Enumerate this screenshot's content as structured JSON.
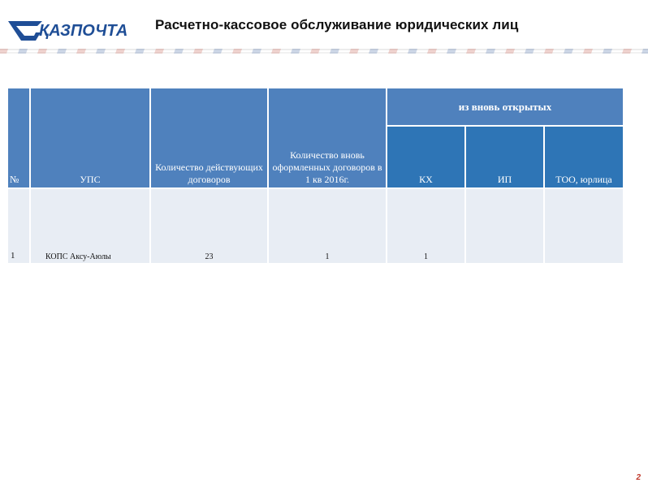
{
  "header": {
    "logo_text": "ҚАЗПОЧТА",
    "title": "Расчетно-кассовое обслуживание юридических лиц"
  },
  "table": {
    "headers": {
      "num": "№",
      "ups": "УПС",
      "existing": "Количество действующих договоров",
      "new": "Количество вновь оформленных договоров в 1 кв 2016г.",
      "group": "из вновь открытых",
      "kx": "КХ",
      "ip": "ИП",
      "too": "ТОО, юрлица"
    },
    "rows": [
      {
        "num": "1",
        "ups": "КОПС Аксу-Аюлы",
        "existing": "23",
        "new": "1",
        "kx": "1",
        "ip": "",
        "too": ""
      }
    ]
  },
  "footer": {
    "page_number": "2"
  },
  "colors": {
    "header_blue": "#4f81bd",
    "header_blue_dark": "#2e75b6",
    "row_bg": "#e8edf4",
    "logo_blue": "#1f4e96",
    "stripe_red": "#c0392b"
  }
}
